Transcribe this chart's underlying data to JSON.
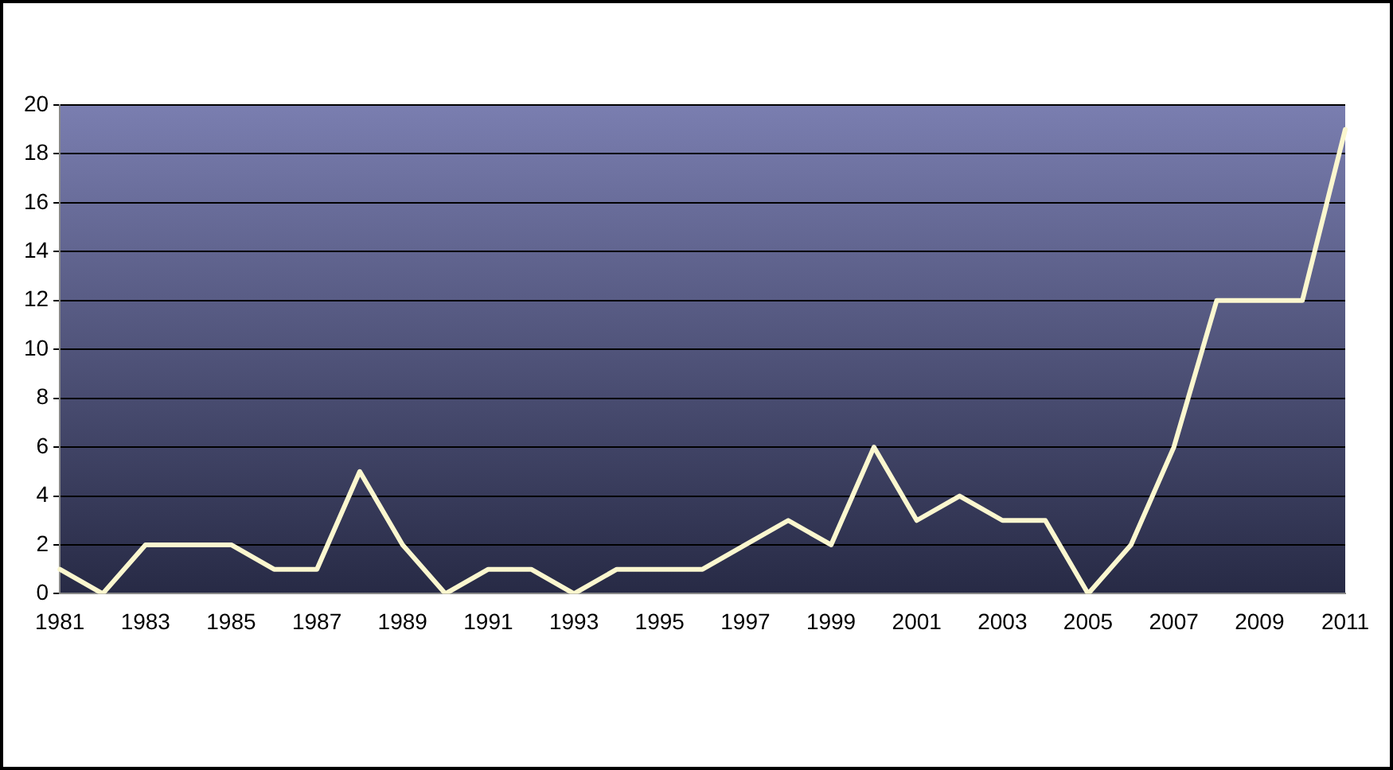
{
  "chart_data": {
    "type": "line",
    "categories": [
      "1981",
      null,
      "1983",
      null,
      "1985",
      null,
      "1987",
      null,
      "1989",
      null,
      "1991",
      null,
      "1993",
      null,
      "1995",
      null,
      "1997",
      null,
      "1999",
      null,
      "2001",
      null,
      "2003",
      null,
      "2005",
      null,
      "2007",
      null,
      "2009",
      null,
      "2011"
    ],
    "series": [
      {
        "color": "#fbf7cf",
        "values": [
          1,
          0,
          2,
          2,
          2,
          1,
          1,
          5,
          2,
          0,
          1,
          1,
          0,
          1,
          1,
          1,
          2,
          3,
          2,
          6,
          3,
          4,
          3,
          3,
          0,
          2,
          6,
          12,
          12,
          12,
          19
        ]
      }
    ],
    "ylim": [
      0,
      20
    ],
    "yticks": [
      0,
      2,
      4,
      6,
      8,
      10,
      12,
      14,
      16,
      18,
      20
    ],
    "grid": "y",
    "legend": false,
    "marker": "none",
    "line_style": "solid"
  }
}
